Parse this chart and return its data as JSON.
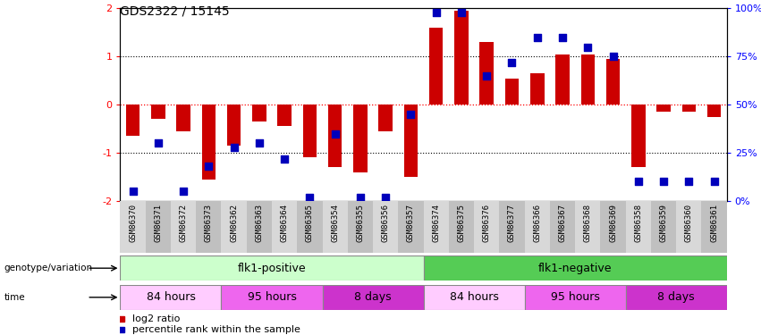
{
  "title": "GDS2322 / 15145",
  "samples": [
    "GSM86370",
    "GSM86371",
    "GSM86372",
    "GSM86373",
    "GSM86362",
    "GSM86363",
    "GSM86364",
    "GSM86365",
    "GSM86354",
    "GSM86355",
    "GSM86356",
    "GSM86357",
    "GSM86374",
    "GSM86375",
    "GSM86376",
    "GSM86377",
    "GSM86366",
    "GSM86367",
    "GSM86368",
    "GSM86369",
    "GSM86358",
    "GSM86359",
    "GSM86360",
    "GSM86361"
  ],
  "log2_ratio": [
    -0.65,
    -0.3,
    -0.55,
    -1.55,
    -0.85,
    -0.35,
    -0.45,
    -1.1,
    -1.3,
    -1.4,
    -0.55,
    -1.5,
    1.6,
    1.95,
    1.3,
    0.55,
    0.65,
    1.05,
    1.05,
    0.95,
    -1.3,
    -0.15,
    -0.15,
    -0.25
  ],
  "percentile": [
    5,
    30,
    5,
    18,
    28,
    30,
    22,
    2,
    35,
    2,
    2,
    45,
    98,
    98,
    65,
    72,
    85,
    85,
    80,
    75,
    10,
    10,
    10,
    10
  ],
  "bar_color": "#cc0000",
  "dot_color": "#0000bb",
  "ylim": [
    -2,
    2
  ],
  "y2lim": [
    0,
    100
  ],
  "yticks": [
    -2,
    -1,
    0,
    1,
    2
  ],
  "y2ticks": [
    0,
    25,
    50,
    75,
    100
  ],
  "y2ticklabels": [
    "0%",
    "25%",
    "50%",
    "75%",
    "100%"
  ],
  "genotype_groups": [
    {
      "label": "flk1-positive",
      "start": 0,
      "end": 12,
      "color": "#ccffcc"
    },
    {
      "label": "flk1-negative",
      "start": 12,
      "end": 24,
      "color": "#55cc55"
    }
  ],
  "time_groups": [
    {
      "label": "84 hours",
      "start": 0,
      "end": 4,
      "color": "#ffccff"
    },
    {
      "label": "95 hours",
      "start": 4,
      "end": 8,
      "color": "#ee66ee"
    },
    {
      "label": "8 days",
      "start": 8,
      "end": 12,
      "color": "#cc33cc"
    },
    {
      "label": "84 hours",
      "start": 12,
      "end": 16,
      "color": "#ffccff"
    },
    {
      "label": "95 hours",
      "start": 16,
      "end": 20,
      "color": "#ee66ee"
    },
    {
      "label": "8 days",
      "start": 20,
      "end": 24,
      "color": "#cc33cc"
    }
  ],
  "legend_items": [
    {
      "label": "log2 ratio",
      "color": "#cc0000"
    },
    {
      "label": "percentile rank within the sample",
      "color": "#0000bb"
    }
  ],
  "bg_color": "white",
  "bar_width": 0.55,
  "dot_size": 28,
  "xlabel_fontsize": 6.5,
  "title_fontsize": 10,
  "genotype_label": "genotype/variation",
  "time_label": "time",
  "col_bg_even": "#d8d8d8",
  "col_bg_odd": "#c0c0c0"
}
